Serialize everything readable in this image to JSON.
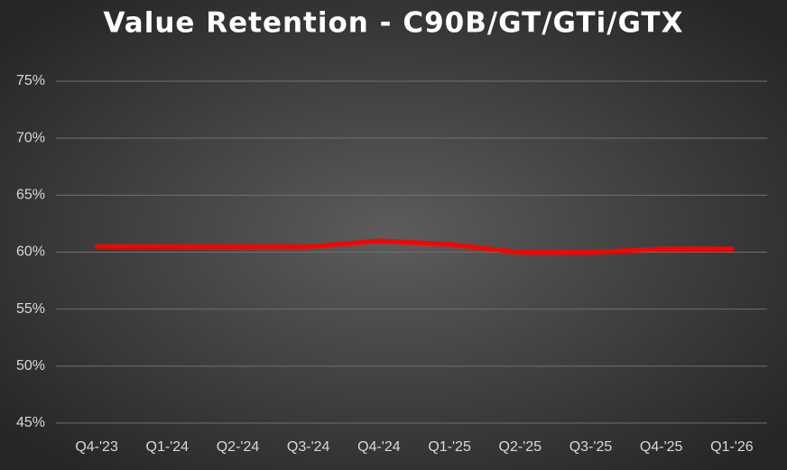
{
  "chart_data": {
    "type": "line",
    "title": "Value Retention - C90B/GT/GTi/GTX",
    "categories": [
      "Q4-'23",
      "Q1-'24",
      "Q2-'24",
      "Q3-'24",
      "Q4-'24",
      "Q1-'25",
      "Q2-'25",
      "Q3-'25",
      "Q4-'25",
      "Q1-'26"
    ],
    "values": [
      60.5,
      60.5,
      60.5,
      60.5,
      61.0,
      60.7,
      60.0,
      60.0,
      60.3,
      60.3
    ],
    "color": "#ff0000",
    "ylim": [
      45,
      75
    ],
    "yticks": [
      {
        "value": 45,
        "label": "45%"
      },
      {
        "value": 50,
        "label": "50%"
      },
      {
        "value": 55,
        "label": "55%"
      },
      {
        "value": 60,
        "label": "60%"
      },
      {
        "value": 65,
        "label": "65%"
      },
      {
        "value": 70,
        "label": "70%"
      },
      {
        "value": 75,
        "label": "75%"
      }
    ],
    "grid": true
  }
}
